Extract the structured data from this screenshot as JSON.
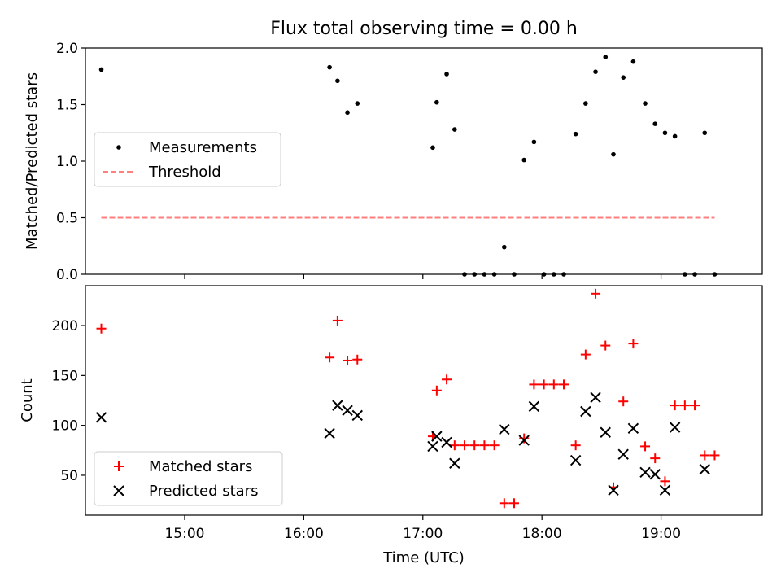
{
  "chart_data": [
    {
      "type": "scatter",
      "title": "Flux total observing time = 0.00 h",
      "xlabel": "",
      "ylabel": "Matched/Predicted stars",
      "ylim": [
        0,
        2.0
      ],
      "yticks": [
        "0.0",
        "0.5",
        "1.0",
        "1.5",
        "2.0"
      ],
      "xlim": [
        "14:10",
        "19:51"
      ],
      "legend_position": "center-left",
      "series": [
        {
          "name": "Measurements",
          "marker": "dot",
          "color": "#000000",
          "points": [
            [
              "14:18",
              1.81
            ],
            [
              "16:13",
              1.83
            ],
            [
              "16:17",
              1.71
            ],
            [
              "16:22",
              1.43
            ],
            [
              "16:27",
              1.51
            ],
            [
              "17:05",
              1.12
            ],
            [
              "17:07",
              1.52
            ],
            [
              "17:12",
              1.77
            ],
            [
              "17:16",
              1.28
            ],
            [
              "17:21",
              0.0
            ],
            [
              "17:26",
              0.0
            ],
            [
              "17:31",
              0.0
            ],
            [
              "17:36",
              0.0
            ],
            [
              "17:41",
              0.24
            ],
            [
              "17:46",
              0.0
            ],
            [
              "17:51",
              1.01
            ],
            [
              "17:56",
              1.17
            ],
            [
              "18:01",
              0.0
            ],
            [
              "18:06",
              0.0
            ],
            [
              "18:11",
              0.0
            ],
            [
              "18:17",
              1.24
            ],
            [
              "18:22",
              1.51
            ],
            [
              "18:27",
              1.79
            ],
            [
              "18:32",
              1.92
            ],
            [
              "18:36",
              1.06
            ],
            [
              "18:41",
              1.74
            ],
            [
              "18:46",
              1.88
            ],
            [
              "18:52",
              1.51
            ],
            [
              "18:57",
              1.33
            ],
            [
              "19:02",
              1.25
            ],
            [
              "19:07",
              1.22
            ],
            [
              "19:12",
              0.0
            ],
            [
              "19:17",
              0.0
            ],
            [
              "19:22",
              1.25
            ],
            [
              "19:27",
              0.0
            ]
          ]
        },
        {
          "name": "Threshold",
          "marker": "dashed-line",
          "color": "#ff7f7f",
          "points": [
            [
              "14:18",
              0.5
            ],
            [
              "19:27",
              0.5
            ]
          ]
        }
      ]
    },
    {
      "type": "scatter",
      "title": "",
      "xlabel": "Time (UTC)",
      "ylabel": "Count",
      "ylim": [
        10,
        240
      ],
      "yticks": [
        "50",
        "100",
        "150",
        "200"
      ],
      "xticks": [
        "15:00",
        "16:00",
        "17:00",
        "18:00",
        "19:00"
      ],
      "xlim": [
        "14:10",
        "19:51"
      ],
      "legend_position": "bottom-left",
      "series": [
        {
          "name": "Matched stars",
          "marker": "plus",
          "color": "#ff0000",
          "points": [
            [
              "14:18",
              197
            ],
            [
              "16:13",
              168
            ],
            [
              "16:17",
              205
            ],
            [
              "16:22",
              165
            ],
            [
              "16:27",
              166
            ],
            [
              "17:05",
              89
            ],
            [
              "17:07",
              135
            ],
            [
              "17:12",
              146
            ],
            [
              "17:16",
              80
            ],
            [
              "17:21",
              80
            ],
            [
              "17:26",
              80
            ],
            [
              "17:31",
              80
            ],
            [
              "17:36",
              80
            ],
            [
              "17:41",
              22
            ],
            [
              "17:46",
              22
            ],
            [
              "17:51",
              87
            ],
            [
              "17:56",
              141
            ],
            [
              "18:01",
              141
            ],
            [
              "18:06",
              141
            ],
            [
              "18:11",
              141
            ],
            [
              "18:17",
              80
            ],
            [
              "18:22",
              171
            ],
            [
              "18:27",
              232
            ],
            [
              "18:32",
              180
            ],
            [
              "18:36",
              38
            ],
            [
              "18:41",
              124
            ],
            [
              "18:46",
              182
            ],
            [
              "18:52",
              79
            ],
            [
              "18:57",
              67
            ],
            [
              "19:02",
              44
            ],
            [
              "19:07",
              120
            ],
            [
              "19:12",
              120
            ],
            [
              "19:17",
              120
            ],
            [
              "19:22",
              70
            ],
            [
              "19:27",
              70
            ]
          ]
        },
        {
          "name": "Predicted stars",
          "marker": "x",
          "color": "#000000",
          "points": [
            [
              "14:18",
              108
            ],
            [
              "16:13",
              92
            ],
            [
              "16:17",
              120
            ],
            [
              "16:22",
              115
            ],
            [
              "16:27",
              110
            ],
            [
              "17:05",
              79
            ],
            [
              "17:07",
              89
            ],
            [
              "17:12",
              83
            ],
            [
              "17:16",
              62
            ],
            [
              "17:41",
              96
            ],
            [
              "17:51",
              85
            ],
            [
              "17:56",
              119
            ],
            [
              "18:17",
              65
            ],
            [
              "18:22",
              114
            ],
            [
              "18:27",
              128
            ],
            [
              "18:32",
              93
            ],
            [
              "18:36",
              35
            ],
            [
              "18:41",
              71
            ],
            [
              "18:46",
              97
            ],
            [
              "18:52",
              53
            ],
            [
              "18:57",
              51
            ],
            [
              "19:02",
              35
            ],
            [
              "19:07",
              98
            ],
            [
              "19:22",
              56
            ]
          ]
        }
      ]
    }
  ]
}
